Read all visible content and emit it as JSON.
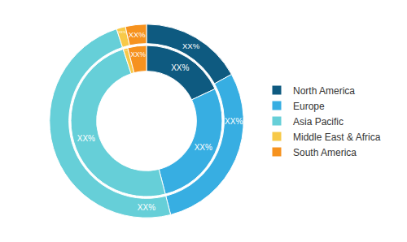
{
  "chart_data": {
    "type": "pie",
    "categories": [
      "North America",
      "Europe",
      "Asia Pacific",
      "Middle East & Africa",
      "South America"
    ],
    "colors": [
      "#0e5a80",
      "#37aee2",
      "#66cfd8",
      "#f7c948",
      "#f6921e"
    ],
    "series": [
      {
        "values": [
          17,
          29,
          49,
          1.5,
          3.5
        ],
        "value_labels": [
          "XX%",
          "XX%",
          "XX%",
          "XX%",
          "XX%"
        ]
      },
      {
        "values": [
          18,
          28,
          49,
          1,
          4
        ],
        "value_labels": [
          "XX%",
          "XX%",
          "XX%",
          "XX%",
          "XX%"
        ]
      }
    ],
    "data_labels": true,
    "legend": "right"
  }
}
